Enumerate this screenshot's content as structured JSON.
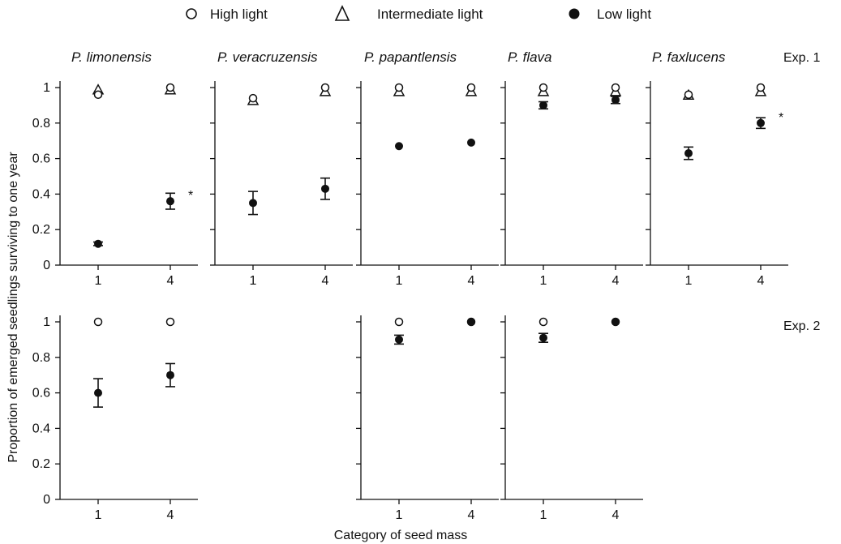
{
  "legend": [
    {
      "key": "high",
      "label": "High light",
      "marker": "open-circle"
    },
    {
      "key": "inter",
      "label": "Intermediate light",
      "marker": "open-triangle"
    },
    {
      "key": "low",
      "label": "Low light",
      "marker": "filled-circle"
    }
  ],
  "y_axis_label": "Proportion of emerged seedlings surviving to one year",
  "x_axis_label": "Category of seed mass",
  "rows": [
    {
      "label": "Exp. 1"
    },
    {
      "label": "Exp. 2"
    }
  ],
  "species": [
    "P. limonensis",
    "P. veracruzensis",
    "P. papantlensis",
    "P. flava",
    "P. faxlucens"
  ],
  "chart_data": [
    {
      "type": "scatter",
      "title": "P. limonensis",
      "experiment": "Exp. 1",
      "row": 0,
      "col": 0,
      "categories": [
        "1",
        "4"
      ],
      "ylim": [
        0,
        1
      ],
      "yticks": [
        "0",
        "0.2",
        "0.4",
        "0.6",
        "0.8",
        "1"
      ],
      "show_y_labels": true,
      "series": [
        {
          "name": "High light",
          "values": [
            0.96,
            1.0
          ]
        },
        {
          "name": "Intermediate light",
          "values": [
            0.99,
            0.99
          ]
        },
        {
          "name": "Low light",
          "values": [
            0.12,
            0.36
          ],
          "err": [
            0.01,
            0.045
          ]
        }
      ],
      "annotation": "*"
    },
    {
      "type": "scatter",
      "title": "P. veracruzensis",
      "experiment": "Exp. 1",
      "row": 0,
      "col": 1,
      "categories": [
        "1",
        "4"
      ],
      "ylim": [
        0,
        1
      ],
      "show_y_labels": false,
      "series": [
        {
          "name": "High light",
          "values": [
            0.94,
            1.0
          ]
        },
        {
          "name": "Intermediate light",
          "values": [
            0.93,
            0.98
          ]
        },
        {
          "name": "Low light",
          "values": [
            0.35,
            0.43
          ],
          "err": [
            0.065,
            0.06
          ]
        }
      ]
    },
    {
      "type": "scatter",
      "title": "P. papantlensis",
      "experiment": "Exp. 1",
      "row": 0,
      "col": 2,
      "categories": [
        "1",
        "4"
      ],
      "ylim": [
        0,
        1
      ],
      "show_y_labels": false,
      "series": [
        {
          "name": "High light",
          "values": [
            1.0,
            1.0
          ]
        },
        {
          "name": "Intermediate light",
          "values": [
            0.98,
            0.98
          ]
        },
        {
          "name": "Low light",
          "values": [
            0.67,
            0.69
          ]
        }
      ]
    },
    {
      "type": "scatter",
      "title": "P. flava",
      "experiment": "Exp. 1",
      "row": 0,
      "col": 3,
      "categories": [
        "1",
        "4"
      ],
      "ylim": [
        0,
        1
      ],
      "show_y_labels": false,
      "series": [
        {
          "name": "High light",
          "values": [
            1.0,
            1.0
          ]
        },
        {
          "name": "Intermediate light",
          "values": [
            0.98,
            0.98
          ]
        },
        {
          "name": "Low light",
          "values": [
            0.9,
            0.93
          ],
          "err": [
            0.02,
            0.02
          ]
        }
      ]
    },
    {
      "type": "scatter",
      "title": "P. faxlucens",
      "experiment": "Exp. 1",
      "row": 0,
      "col": 4,
      "categories": [
        "1",
        "4"
      ],
      "ylim": [
        0,
        1
      ],
      "show_y_labels": false,
      "series": [
        {
          "name": "High light",
          "values": [
            0.96,
            1.0
          ]
        },
        {
          "name": "Intermediate light",
          "values": [
            0.96,
            0.98
          ]
        },
        {
          "name": "Low light",
          "values": [
            0.63,
            0.8
          ],
          "err": [
            0.035,
            0.03
          ]
        }
      ],
      "annotation": "*"
    },
    {
      "type": "scatter",
      "title": "",
      "experiment": "Exp. 2",
      "row": 1,
      "col": 0,
      "categories": [
        "1",
        "4"
      ],
      "ylim": [
        0,
        1
      ],
      "yticks": [
        "0",
        "0.2",
        "0.4",
        "0.6",
        "0.8",
        "1"
      ],
      "show_y_labels": true,
      "series": [
        {
          "name": "High light",
          "values": [
            1.0,
            1.0
          ]
        },
        {
          "name": "Low light",
          "values": [
            0.6,
            0.7
          ],
          "err": [
            0.08,
            0.065
          ]
        }
      ]
    },
    {
      "type": "scatter",
      "title": "",
      "experiment": "Exp. 2",
      "row": 1,
      "col": 2,
      "categories": [
        "1",
        "4"
      ],
      "ylim": [
        0,
        1
      ],
      "show_y_labels": false,
      "series": [
        {
          "name": "High light",
          "values": [
            1.0,
            1.0
          ]
        },
        {
          "name": "Low light",
          "values": [
            0.9,
            1.0
          ],
          "err": [
            0.025,
            0.0
          ]
        }
      ]
    },
    {
      "type": "scatter",
      "title": "",
      "experiment": "Exp. 2",
      "row": 1,
      "col": 3,
      "categories": [
        "1",
        "4"
      ],
      "ylim": [
        0,
        1
      ],
      "show_y_labels": false,
      "series": [
        {
          "name": "High light",
          "values": [
            1.0,
            1.0
          ]
        },
        {
          "name": "Low light",
          "values": [
            0.91,
            1.0
          ],
          "err": [
            0.025,
            0.0
          ]
        }
      ]
    }
  ]
}
